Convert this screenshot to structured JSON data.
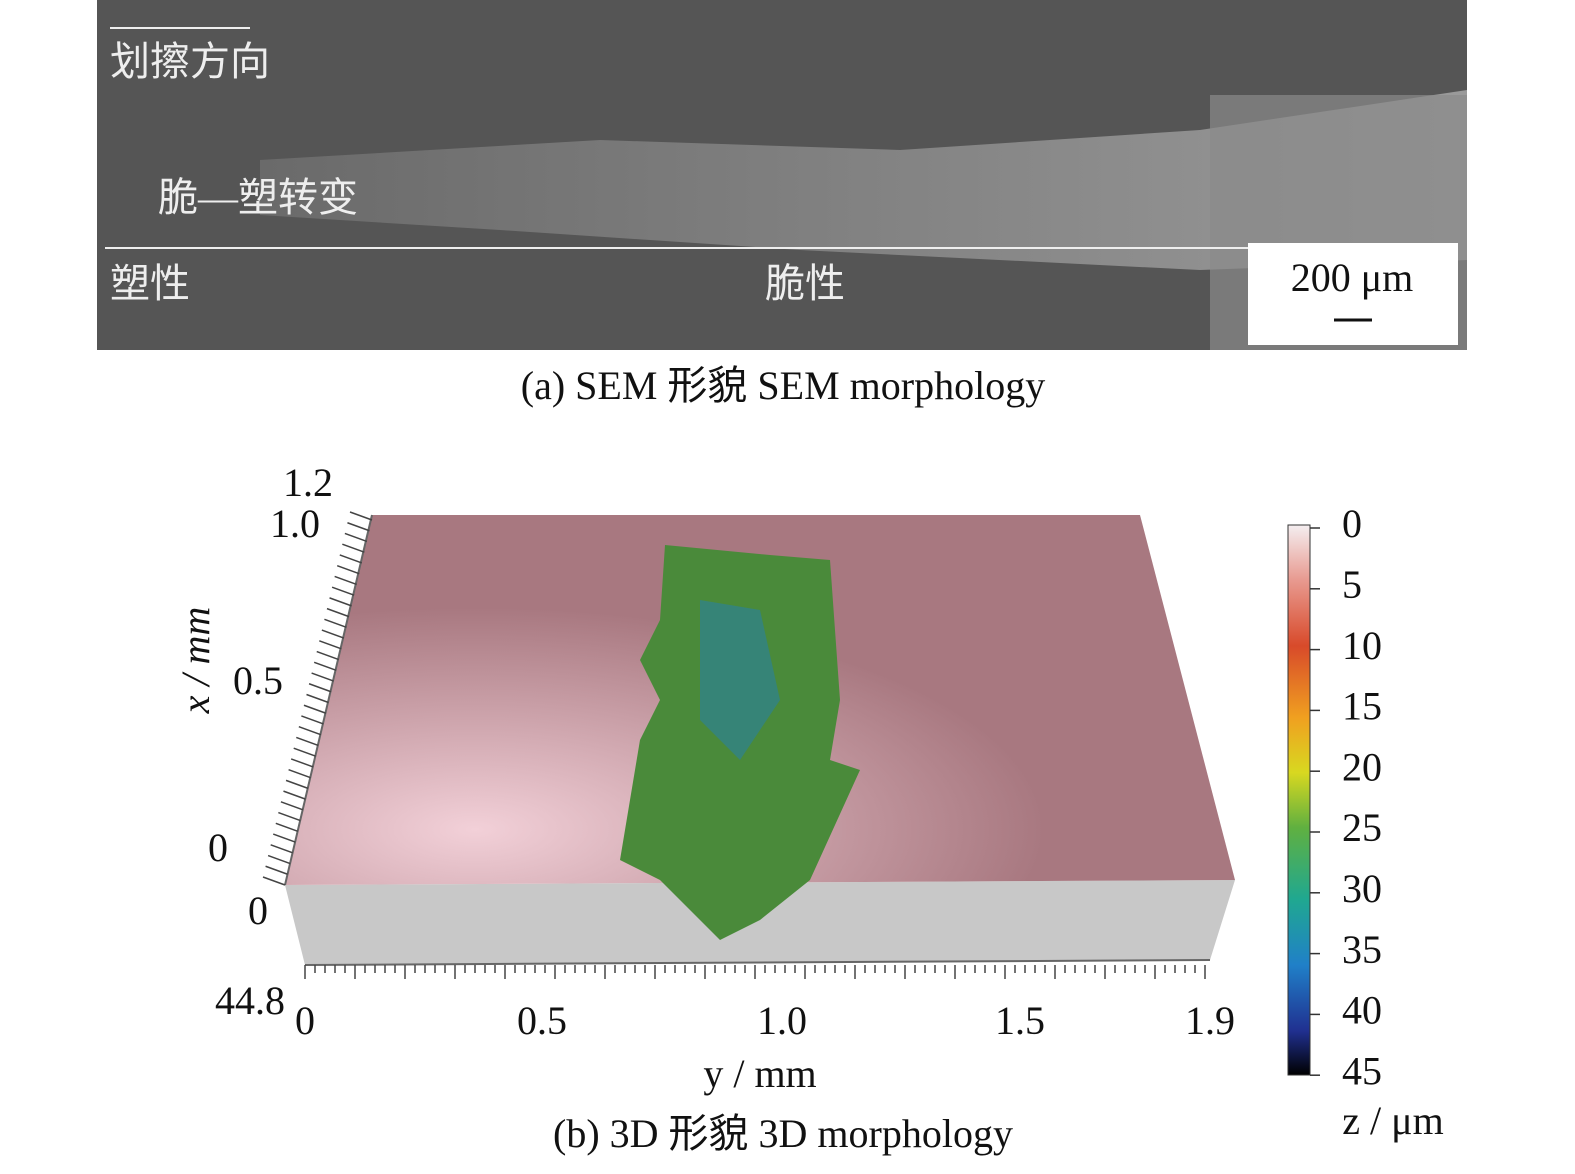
{
  "panel_a": {
    "direction_label": "划擦方向",
    "transition_label": "脆—塑转变",
    "ductile_label": "塑性",
    "brittle_label": "脆性",
    "scale_bar": "200 μm",
    "caption": "(a) SEM 形貌 SEM morphology"
  },
  "panel_b": {
    "x_axis_label": "x / mm",
    "x_ticks": [
      "1.2",
      "1.0",
      "0.5",
      "0"
    ],
    "z_axis_ticks": [
      "0",
      "44.8"
    ],
    "y_axis_label": "y / mm",
    "y_ticks": [
      "0",
      "0.5",
      "1.0",
      "1.5",
      "1.9"
    ],
    "colorbar_ticks": [
      "0",
      "5",
      "10",
      "15",
      "20",
      "25",
      "30",
      "35",
      "40",
      "45"
    ],
    "colorbar_label": "z / μm",
    "caption": "(b) 3D 形貌 3D morphology"
  }
}
